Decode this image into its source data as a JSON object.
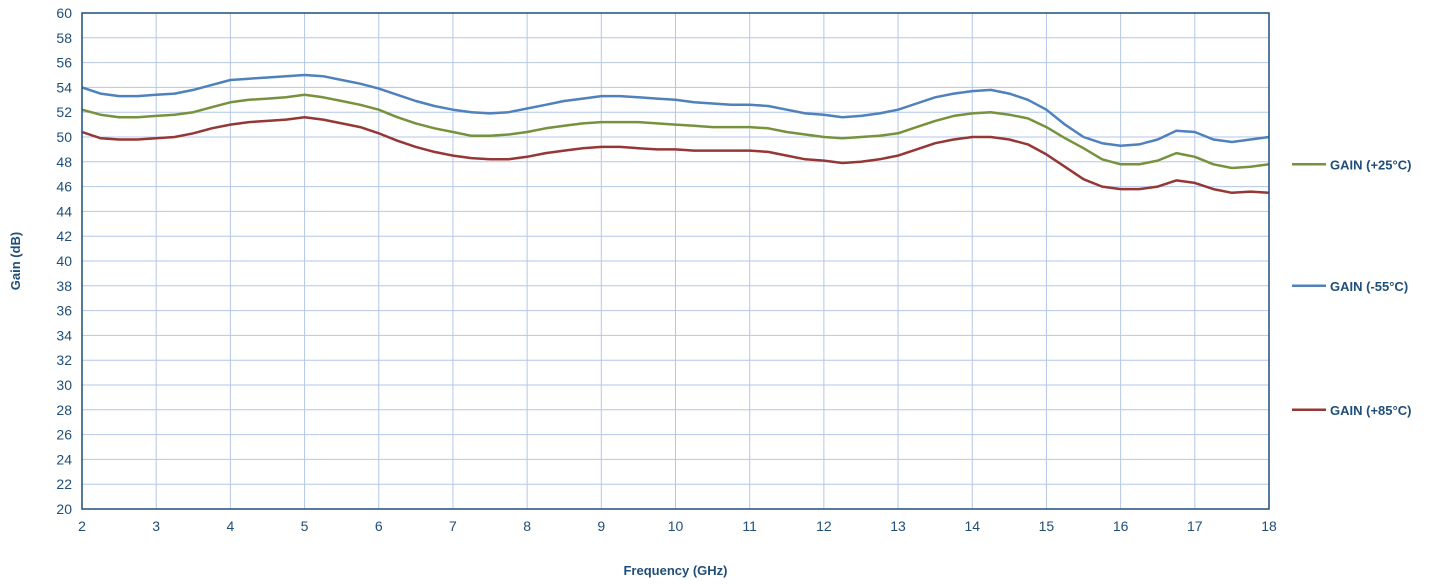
{
  "chart_data": {
    "type": "line",
    "title": "",
    "xlabel": "Frequency (GHz)",
    "ylabel": "Gain (dB)",
    "xlim": [
      2,
      18
    ],
    "ylim": [
      20,
      60
    ],
    "x_ticks": [
      "2",
      "3",
      "4",
      "5",
      "6",
      "7",
      "8",
      "9",
      "10",
      "11",
      "12",
      "13",
      "14",
      "15",
      "16",
      "17",
      "18"
    ],
    "y_ticks": [
      "20",
      "22",
      "24",
      "26",
      "28",
      "30",
      "32",
      "34",
      "36",
      "38",
      "40",
      "42",
      "44",
      "46",
      "48",
      "50",
      "52",
      "54",
      "56",
      "58",
      "60"
    ],
    "grid": true,
    "legend_placement": "right",
    "colors": {
      "grid": "#b4c7e7",
      "axis": "#1f4e79",
      "text": "#1f4e79"
    },
    "series": [
      {
        "name": "GAIN (+25°C)",
        "color": "#76923c",
        "legend_y": 47.8,
        "x": [
          2,
          2.25,
          2.5,
          2.75,
          3,
          3.25,
          3.5,
          3.75,
          4,
          4.25,
          4.5,
          4.75,
          5,
          5.25,
          5.5,
          5.75,
          6,
          6.25,
          6.5,
          6.75,
          7,
          7.25,
          7.5,
          7.75,
          8,
          8.25,
          8.5,
          8.75,
          9,
          9.25,
          9.5,
          9.75,
          10,
          10.25,
          10.5,
          10.75,
          11,
          11.25,
          11.5,
          11.75,
          12,
          12.25,
          12.5,
          12.75,
          13,
          13.25,
          13.5,
          13.75,
          14,
          14.25,
          14.5,
          14.75,
          15,
          15.25,
          15.5,
          15.75,
          16,
          16.25,
          16.5,
          16.75,
          17,
          17.25,
          17.5,
          17.75,
          18
        ],
        "y": [
          52.2,
          51.8,
          51.6,
          51.6,
          51.7,
          51.8,
          52.0,
          52.4,
          52.8,
          53.0,
          53.1,
          53.2,
          53.4,
          53.2,
          52.9,
          52.6,
          52.2,
          51.6,
          51.1,
          50.7,
          50.4,
          50.1,
          50.1,
          50.2,
          50.4,
          50.7,
          50.9,
          51.1,
          51.2,
          51.2,
          51.2,
          51.1,
          51.0,
          50.9,
          50.8,
          50.8,
          50.8,
          50.7,
          50.4,
          50.2,
          50.0,
          49.9,
          50.0,
          50.1,
          50.3,
          50.8,
          51.3,
          51.7,
          51.9,
          52.0,
          51.8,
          51.5,
          50.8,
          49.9,
          49.1,
          48.2,
          47.8,
          47.8,
          48.1,
          48.7,
          48.4,
          47.8,
          47.5,
          47.6,
          47.8
        ]
      },
      {
        "name": "GAIN (-55°C)",
        "color": "#4f81bd",
        "legend_y": 38,
        "x": [
          2,
          2.25,
          2.5,
          2.75,
          3,
          3.25,
          3.5,
          3.75,
          4,
          4.25,
          4.5,
          4.75,
          5,
          5.25,
          5.5,
          5.75,
          6,
          6.25,
          6.5,
          6.75,
          7,
          7.25,
          7.5,
          7.75,
          8,
          8.25,
          8.5,
          8.75,
          9,
          9.25,
          9.5,
          9.75,
          10,
          10.25,
          10.5,
          10.75,
          11,
          11.25,
          11.5,
          11.75,
          12,
          12.25,
          12.5,
          12.75,
          13,
          13.25,
          13.5,
          13.75,
          14,
          14.25,
          14.5,
          14.75,
          15,
          15.25,
          15.5,
          15.75,
          16,
          16.25,
          16.5,
          16.75,
          17,
          17.25,
          17.5,
          17.75,
          18
        ],
        "y": [
          54.0,
          53.5,
          53.3,
          53.3,
          53.4,
          53.5,
          53.8,
          54.2,
          54.6,
          54.7,
          54.8,
          54.9,
          55.0,
          54.9,
          54.6,
          54.3,
          53.9,
          53.4,
          52.9,
          52.5,
          52.2,
          52.0,
          51.9,
          52.0,
          52.3,
          52.6,
          52.9,
          53.1,
          53.3,
          53.3,
          53.2,
          53.1,
          53.0,
          52.8,
          52.7,
          52.6,
          52.6,
          52.5,
          52.2,
          51.9,
          51.8,
          51.6,
          51.7,
          51.9,
          52.2,
          52.7,
          53.2,
          53.5,
          53.7,
          53.8,
          53.5,
          53.0,
          52.2,
          51.0,
          50.0,
          49.5,
          49.3,
          49.4,
          49.8,
          50.5,
          50.4,
          49.8,
          49.6,
          49.8,
          50.0
        ]
      },
      {
        "name": "GAIN (+85°C)",
        "color": "#953735",
        "legend_y": 28,
        "x": [
          2,
          2.25,
          2.5,
          2.75,
          3,
          3.25,
          3.5,
          3.75,
          4,
          4.25,
          4.5,
          4.75,
          5,
          5.25,
          5.5,
          5.75,
          6,
          6.25,
          6.5,
          6.75,
          7,
          7.25,
          7.5,
          7.75,
          8,
          8.25,
          8.5,
          8.75,
          9,
          9.25,
          9.5,
          9.75,
          10,
          10.25,
          10.5,
          10.75,
          11,
          11.25,
          11.5,
          11.75,
          12,
          12.25,
          12.5,
          12.75,
          13,
          13.25,
          13.5,
          13.75,
          14,
          14.25,
          14.5,
          14.75,
          15,
          15.25,
          15.5,
          15.75,
          16,
          16.25,
          16.5,
          16.75,
          17,
          17.25,
          17.5,
          17.75,
          18
        ],
        "y": [
          50.4,
          49.9,
          49.8,
          49.8,
          49.9,
          50.0,
          50.3,
          50.7,
          51.0,
          51.2,
          51.3,
          51.4,
          51.6,
          51.4,
          51.1,
          50.8,
          50.3,
          49.7,
          49.2,
          48.8,
          48.5,
          48.3,
          48.2,
          48.2,
          48.4,
          48.7,
          48.9,
          49.1,
          49.2,
          49.2,
          49.1,
          49.0,
          49.0,
          48.9,
          48.9,
          48.9,
          48.9,
          48.8,
          48.5,
          48.2,
          48.1,
          47.9,
          48.0,
          48.2,
          48.5,
          49.0,
          49.5,
          49.8,
          50.0,
          50.0,
          49.8,
          49.4,
          48.6,
          47.6,
          46.6,
          46.0,
          45.8,
          45.8,
          46.0,
          46.5,
          46.3,
          45.8,
          45.5,
          45.6,
          45.5
        ]
      }
    ]
  }
}
